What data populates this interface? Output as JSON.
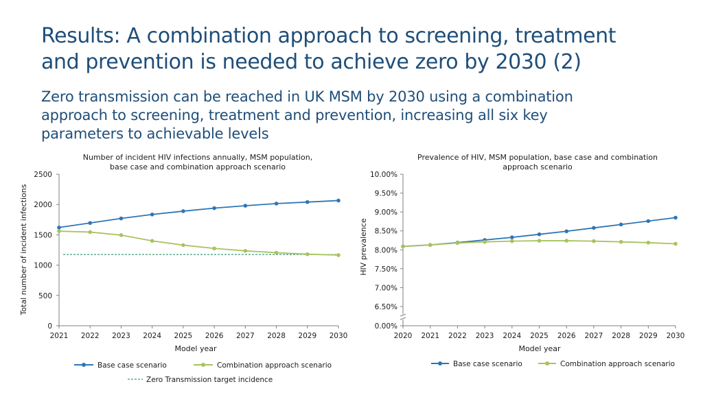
{
  "slide": {
    "title_line1": "Results: A combination approach to screening, treatment",
    "title_line2": "and prevention is needed to achieve zero by 2030 (2)",
    "subtitle_line1": "Zero transmission can be reached in UK MSM by 2030 using a combination",
    "subtitle_line2": "approach to screening, treatment and prevention, increasing all six key",
    "subtitle_line3": "parameters to achievable levels"
  },
  "colors": {
    "title": "#1f4e79",
    "base": "#2e75b6",
    "combo": "#a9c25d",
    "target": "#3a9a78"
  },
  "chart_data": [
    {
      "type": "line",
      "title_line1": "Number of incident HIV infections annually, MSM population,",
      "title_line2": "base case and combination approach scenario",
      "xlabel": "Model year",
      "ylabel": "Total number of incident infections",
      "categories": [
        "2021",
        "2022",
        "2023",
        "2024",
        "2025",
        "2026",
        "2027",
        "2028",
        "2029",
        "2030"
      ],
      "ylim": [
        0,
        2500
      ],
      "yticks": [
        "0",
        "500",
        "1000",
        "1500",
        "2000",
        "2500"
      ],
      "ytick_values": [
        0,
        500,
        1000,
        1500,
        2000,
        2500
      ],
      "series": [
        {
          "name": "Base case scenario",
          "values": [
            1620,
            1695,
            1770,
            1835,
            1890,
            1940,
            1980,
            2015,
            2040,
            2065
          ]
        },
        {
          "name": "Combination approach scenario",
          "values": [
            1560,
            1545,
            1495,
            1400,
            1330,
            1275,
            1235,
            1205,
            1180,
            1165
          ]
        }
      ],
      "target": {
        "name": "Zero Transmission target incidence",
        "value": 1175
      }
    },
    {
      "type": "line",
      "title_line1": "Prevalence of HIV, MSM population, base case and combination",
      "title_line2": "approach scenario",
      "xlabel": "Model year",
      "ylabel": "HIV prevalence",
      "categories": [
        "2020",
        "2021",
        "2022",
        "2023",
        "2024",
        "2025",
        "2026",
        "2027",
        "2028",
        "2029",
        "2030"
      ],
      "ylim": [
        6.5,
        10.0
      ],
      "axis_break": true,
      "yticks": [
        "0.00%",
        "6.50%",
        "7.00%",
        "7.50%",
        "8.00%",
        "8.50%",
        "9.00%",
        "9.50%",
        "10.00%"
      ],
      "series": [
        {
          "name": "Base case scenario",
          "values": [
            8.09,
            8.13,
            8.19,
            8.26,
            8.33,
            8.41,
            8.49,
            8.58,
            8.67,
            8.76,
            8.85
          ]
        },
        {
          "name": "Combination approach scenario",
          "values": [
            8.09,
            8.13,
            8.18,
            8.21,
            8.23,
            8.24,
            8.24,
            8.23,
            8.21,
            8.19,
            8.16
          ]
        }
      ]
    }
  ]
}
